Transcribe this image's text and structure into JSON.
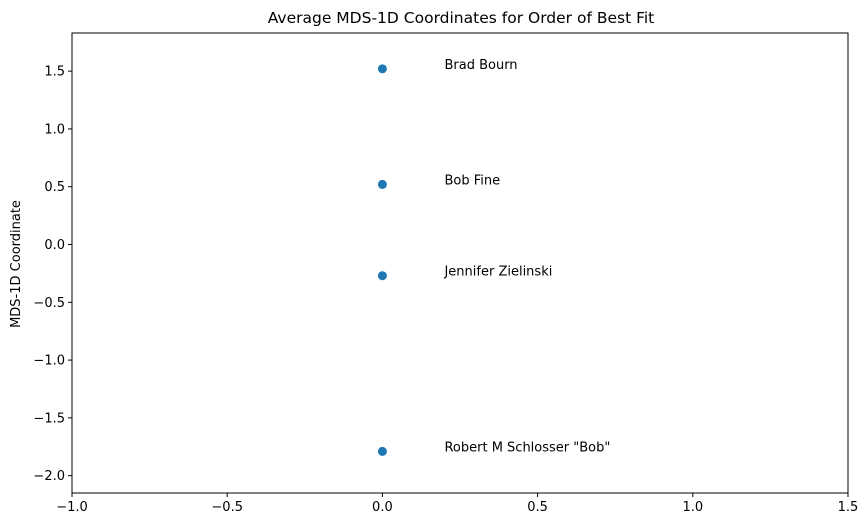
{
  "chart_data": {
    "type": "scatter",
    "title": "Average MDS-1D Coordinates for Order of Best Fit",
    "xlabel": "",
    "ylabel": "MDS-1D Coordinate",
    "xlim": [
      -1.0,
      1.5
    ],
    "ylim": [
      -2.15,
      1.83
    ],
    "xticks": [
      -1.0,
      -0.5,
      0.0,
      0.5,
      1.0,
      1.5
    ],
    "xtick_labels": [
      "−1.0",
      "−0.5",
      "0.0",
      "0.5",
      "1.0",
      "1.5"
    ],
    "yticks": [
      1.5,
      1.0,
      0.5,
      0.0,
      -0.5,
      -1.0,
      -1.5,
      -2.0
    ],
    "ytick_labels": [
      "1.5",
      "1.0",
      "0.5",
      "0.0",
      "−0.5",
      "−1.0",
      "−1.5",
      "−2.0"
    ],
    "grid": false,
    "marker_color": "#1f77b4",
    "points": [
      {
        "x": 0.0,
        "y": 1.52,
        "label": "Brad Bourn",
        "label_x": 0.2,
        "label_y": 1.52
      },
      {
        "x": 0.0,
        "y": 0.52,
        "label": "Bob Fine",
        "label_x": 0.2,
        "label_y": 0.52
      },
      {
        "x": 0.0,
        "y": -0.27,
        "label": "Jennifer Zielinski",
        "label_x": 0.2,
        "label_y": -0.27
      },
      {
        "x": 0.0,
        "y": -1.79,
        "label": "Robert M Schlosser \"Bob\"",
        "label_x": 0.2,
        "label_y": -1.79
      }
    ]
  }
}
